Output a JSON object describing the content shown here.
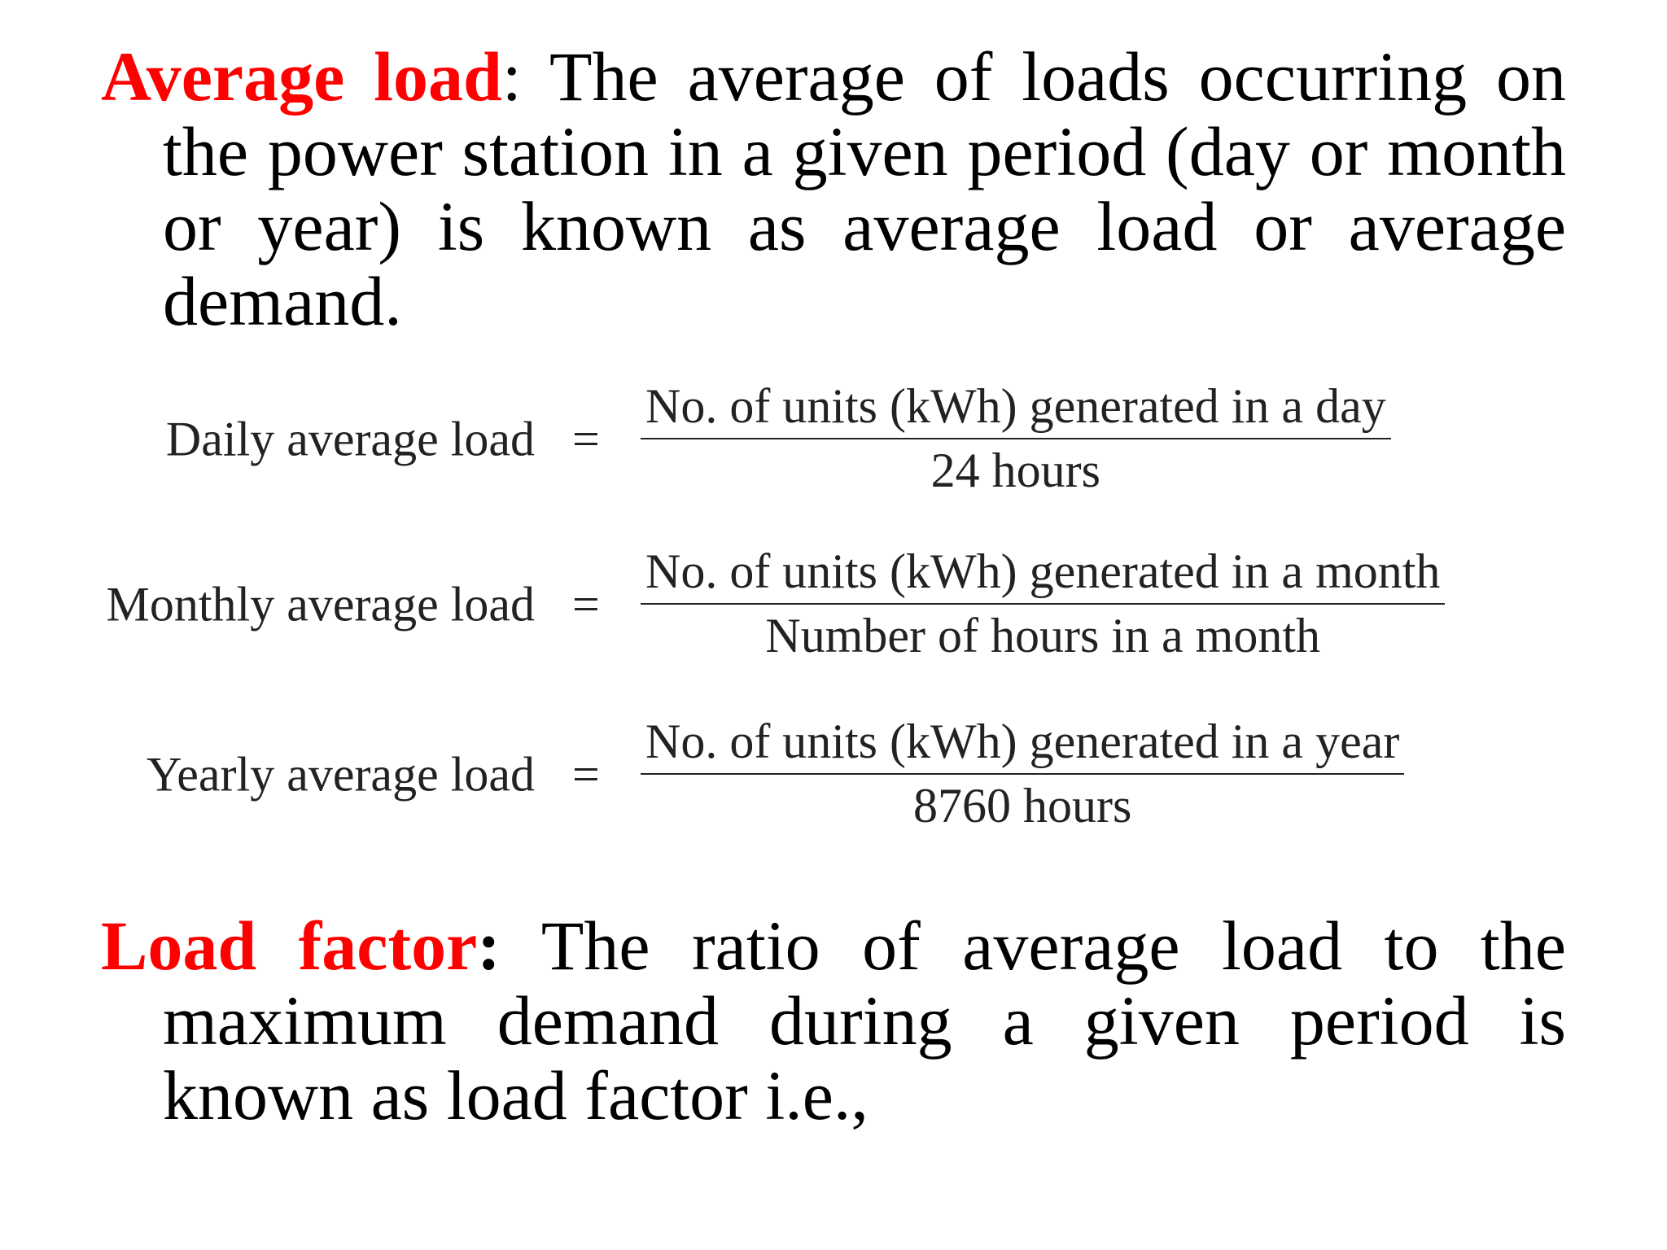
{
  "paragraphs": [
    {
      "term": "Average load",
      "separator": ":",
      "text": "The average of loads occurring on the power station in a given period (day or month or year) is known as average load or average demand."
    },
    {
      "term": "Load factor",
      "separator": ":",
      "text": "The ratio of average load to the maximum demand during a given period is known as load factor i.e.,"
    }
  ],
  "formulas": [
    {
      "label": "Daily average load",
      "equals": "=",
      "numerator": "No. of units (kWh) generated in a day",
      "denominator": "24 hours"
    },
    {
      "label": "Monthly average load",
      "equals": "=",
      "numerator": "No. of units (kWh) generated in a month",
      "denominator": "Number of hours in a month"
    },
    {
      "label": "Yearly average load",
      "equals": "=",
      "numerator": "No. of units (kWh) generated in a year",
      "denominator": "8760 hours"
    }
  ]
}
